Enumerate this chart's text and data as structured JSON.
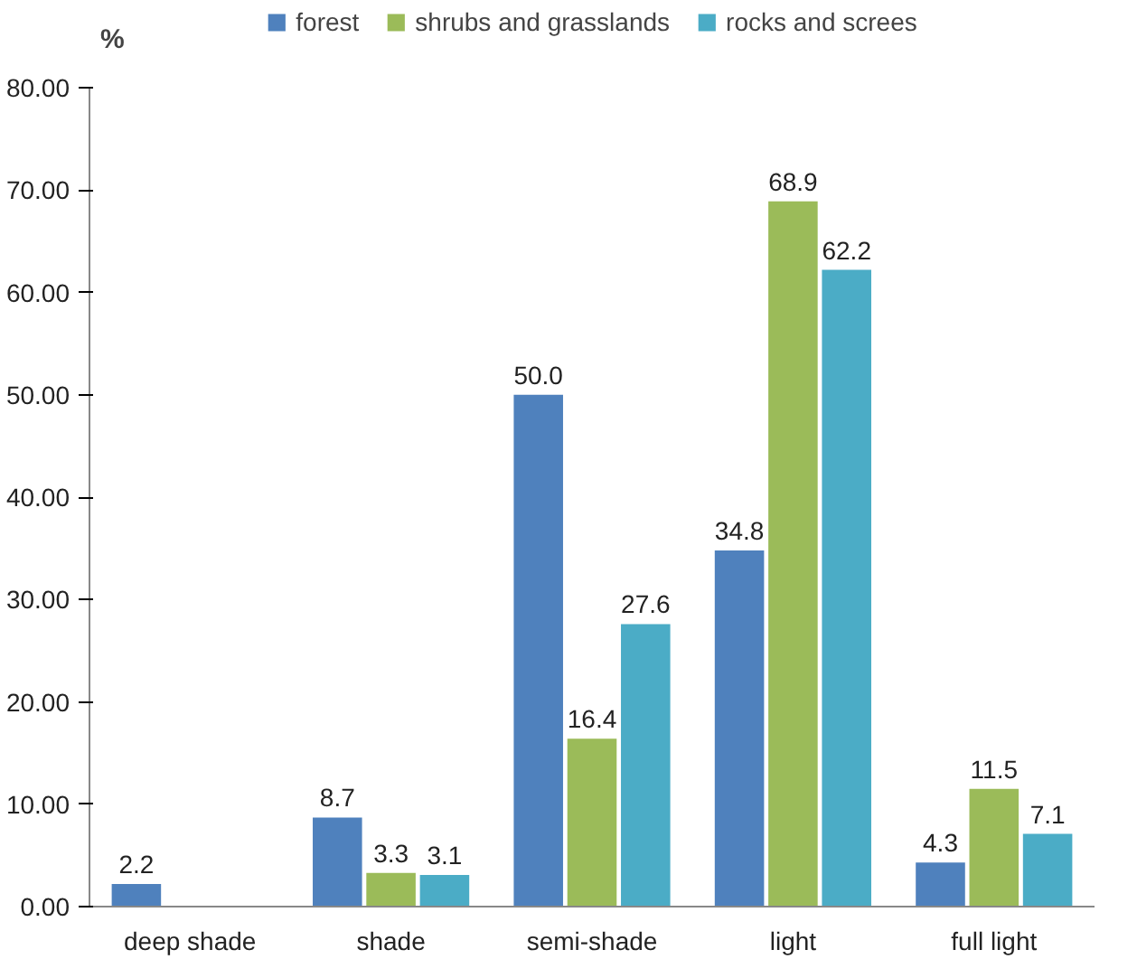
{
  "chart_data": {
    "type": "bar",
    "ylabel": "%",
    "categories": [
      "deep shade",
      "shade",
      "semi-shade",
      "light",
      "full light"
    ],
    "series": [
      {
        "name": "forest",
        "color": "#4f81bd",
        "values": [
          2.2,
          8.7,
          50.0,
          34.8,
          4.3
        ],
        "value_labels": [
          "2.2",
          "8.7",
          "50.0",
          "34.8",
          "4.3"
        ]
      },
      {
        "name": "shrubs and grasslands",
        "color": "#9bbb59",
        "values": [
          null,
          3.3,
          16.4,
          68.9,
          11.5
        ],
        "value_labels": [
          null,
          "3.3",
          "16.4",
          "68.9",
          "11.5"
        ]
      },
      {
        "name": "rocks and screes",
        "color": "#4bacc6",
        "values": [
          null,
          3.1,
          27.6,
          62.2,
          7.1
        ],
        "value_labels": [
          null,
          "3.1",
          "27.6",
          "62.2",
          "7.1"
        ]
      }
    ],
    "ylim": [
      0,
      80
    ],
    "yticks": [
      {
        "value": 0,
        "label": "0.00"
      },
      {
        "value": 10,
        "label": "10.00"
      },
      {
        "value": 20,
        "label": "20.00"
      },
      {
        "value": 30,
        "label": "30.00"
      },
      {
        "value": 40,
        "label": "40.00"
      },
      {
        "value": 50,
        "label": "50.00"
      },
      {
        "value": 60,
        "label": "60.00"
      },
      {
        "value": 70,
        "label": "70.00"
      },
      {
        "value": 80,
        "label": "80.00"
      }
    ],
    "legend": "top",
    "grid": false
  }
}
